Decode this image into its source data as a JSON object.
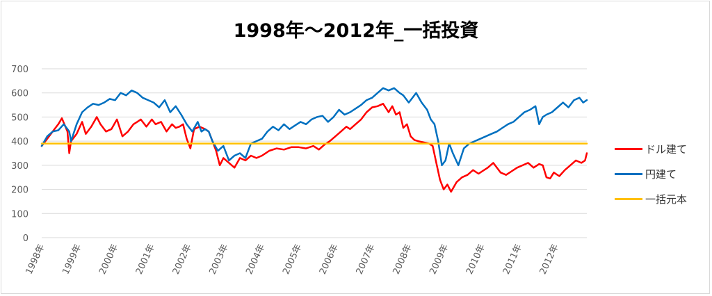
{
  "chart_data": {
    "type": "line",
    "title": "1998年～2012年_一括投資",
    "xlabel": "",
    "ylabel": "",
    "ylim": [
      0,
      700
    ],
    "yticks": [
      0,
      100,
      200,
      300,
      400,
      500,
      600,
      700
    ],
    "xlim": [
      1998.0,
      2012.85
    ],
    "xticks": [
      {
        "x": 1998,
        "label": "1998年"
      },
      {
        "x": 1999,
        "label": "1999年"
      },
      {
        "x": 2000,
        "label": "2000年"
      },
      {
        "x": 2001,
        "label": "2001年"
      },
      {
        "x": 2002,
        "label": "2002年"
      },
      {
        "x": 2003,
        "label": "2003年"
      },
      {
        "x": 2004,
        "label": "2004年"
      },
      {
        "x": 2005,
        "label": "2005年"
      },
      {
        "x": 2006,
        "label": "2006年"
      },
      {
        "x": 2007,
        "label": "2007年"
      },
      {
        "x": 2008,
        "label": "2008年"
      },
      {
        "x": 2009,
        "label": "2009年"
      },
      {
        "x": 2010,
        "label": "2010年"
      },
      {
        "x": 2011,
        "label": "2011年"
      },
      {
        "x": 2012,
        "label": "2012年"
      }
    ],
    "grid": true,
    "legend_position": "right",
    "series": [
      {
        "name": "ドル建て",
        "color": "#ff0000",
        "x": [
          1998.0,
          1998.15,
          1998.3,
          1998.45,
          1998.55,
          1998.7,
          1998.75,
          1998.8,
          1998.95,
          1999.1,
          1999.2,
          1999.35,
          1999.5,
          1999.6,
          1999.75,
          1999.9,
          2000.05,
          2000.2,
          2000.35,
          2000.5,
          2000.6,
          2000.7,
          2000.85,
          2001.0,
          2001.1,
          2001.25,
          2001.4,
          2001.55,
          2001.65,
          2001.75,
          2001.85,
          2001.95,
          2002.05,
          2002.15,
          2002.3,
          2002.45,
          2002.55,
          2002.65,
          2002.75,
          2002.85,
          2002.95,
          2003.1,
          2003.25,
          2003.4,
          2003.55,
          2003.7,
          2003.85,
          2004.0,
          2004.2,
          2004.4,
          2004.6,
          2004.8,
          2005.0,
          2005.2,
          2005.4,
          2005.55,
          2005.7,
          2005.85,
          2006.0,
          2006.15,
          2006.3,
          2006.4,
          2006.55,
          2006.7,
          2006.85,
          2007.0,
          2007.15,
          2007.3,
          2007.45,
          2007.55,
          2007.65,
          2007.75,
          2007.85,
          2007.95,
          2008.05,
          2008.15,
          2008.25,
          2008.4,
          2008.55,
          2008.65,
          2008.75,
          2008.85,
          2008.95,
          2009.05,
          2009.15,
          2009.3,
          2009.45,
          2009.6,
          2009.75,
          2009.9,
          2010.0,
          2010.15,
          2010.3,
          2010.5,
          2010.65,
          2010.8,
          2010.95,
          2011.1,
          2011.25,
          2011.4,
          2011.55,
          2011.65,
          2011.75,
          2011.85,
          2011.95,
          2012.1,
          2012.25,
          2012.4,
          2012.55,
          2012.7,
          2012.8,
          2012.85
        ],
        "values": [
          380,
          410,
          440,
          470,
          495,
          440,
          350,
          400,
          430,
          480,
          430,
          460,
          500,
          470,
          440,
          450,
          490,
          420,
          440,
          470,
          480,
          490,
          460,
          490,
          470,
          480,
          440,
          470,
          455,
          460,
          470,
          410,
          370,
          450,
          460,
          450,
          440,
          400,
          360,
          300,
          330,
          310,
          290,
          330,
          320,
          340,
          330,
          340,
          360,
          370,
          365,
          375,
          375,
          370,
          380,
          365,
          385,
          400,
          420,
          440,
          460,
          450,
          470,
          490,
          520,
          540,
          545,
          555,
          520,
          545,
          510,
          520,
          455,
          470,
          420,
          405,
          400,
          395,
          390,
          380,
          310,
          240,
          200,
          220,
          190,
          230,
          250,
          260,
          280,
          265,
          275,
          290,
          310,
          270,
          260,
          275,
          290,
          300,
          310,
          290,
          305,
          300,
          250,
          245,
          270,
          255,
          280,
          300,
          320,
          310,
          320,
          350
        ]
      },
      {
        "name": "円建て",
        "color": "#0070c0",
        "x": [
          1998.0,
          1998.15,
          1998.3,
          1998.45,
          1998.6,
          1998.75,
          1998.8,
          1998.95,
          1999.1,
          1999.25,
          1999.4,
          1999.55,
          1999.7,
          1999.85,
          2000.0,
          2000.15,
          2000.3,
          2000.45,
          2000.6,
          2000.75,
          2000.9,
          2001.05,
          2001.2,
          2001.35,
          2001.5,
          2001.65,
          2001.8,
          2001.95,
          2002.1,
          2002.25,
          2002.35,
          2002.45,
          2002.55,
          2002.65,
          2002.8,
          2002.95,
          2003.1,
          2003.25,
          2003.4,
          2003.55,
          2003.7,
          2003.85,
          2004.0,
          2004.15,
          2004.3,
          2004.45,
          2004.6,
          2004.75,
          2004.9,
          2005.05,
          2005.2,
          2005.35,
          2005.5,
          2005.65,
          2005.8,
          2005.95,
          2006.1,
          2006.25,
          2006.4,
          2006.55,
          2006.7,
          2006.85,
          2007.0,
          2007.15,
          2007.3,
          2007.45,
          2007.6,
          2007.75,
          2007.85,
          2008.0,
          2008.1,
          2008.2,
          2008.35,
          2008.5,
          2008.6,
          2008.7,
          2008.8,
          2008.9,
          2009.0,
          2009.1,
          2009.2,
          2009.35,
          2009.5,
          2009.65,
          2009.8,
          2009.95,
          2010.1,
          2010.25,
          2010.4,
          2010.55,
          2010.7,
          2010.85,
          2011.0,
          2011.15,
          2011.3,
          2011.45,
          2011.55,
          2011.65,
          2011.75,
          2011.9,
          2012.05,
          2012.2,
          2012.35,
          2012.5,
          2012.65,
          2012.75,
          2012.85
        ],
        "values": [
          380,
          420,
          440,
          445,
          470,
          440,
          400,
          470,
          520,
          540,
          555,
          550,
          560,
          575,
          570,
          600,
          590,
          610,
          600,
          580,
          570,
          560,
          540,
          570,
          520,
          545,
          510,
          470,
          440,
          480,
          440,
          450,
          440,
          400,
          360,
          380,
          320,
          340,
          350,
          330,
          390,
          400,
          410,
          440,
          460,
          445,
          470,
          450,
          465,
          480,
          470,
          490,
          500,
          505,
          480,
          500,
          530,
          510,
          520,
          535,
          550,
          570,
          580,
          600,
          620,
          610,
          620,
          600,
          590,
          560,
          580,
          600,
          560,
          530,
          490,
          470,
          400,
          300,
          320,
          390,
          350,
          300,
          370,
          390,
          400,
          410,
          420,
          430,
          440,
          455,
          470,
          480,
          500,
          520,
          530,
          545,
          470,
          500,
          510,
          520,
          540,
          560,
          540,
          570,
          580,
          560,
          570
        ]
      },
      {
        "name": "一括元本",
        "color": "#ffc000",
        "x": [
          1998.0,
          2012.85
        ],
        "values": [
          390,
          390
        ]
      }
    ]
  }
}
